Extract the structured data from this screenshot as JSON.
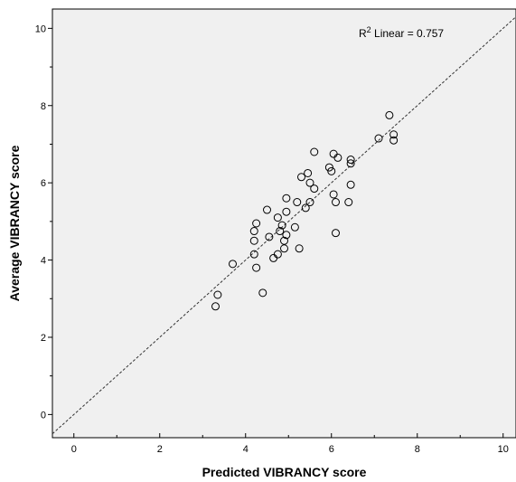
{
  "chart_data": {
    "type": "scatter",
    "title": "",
    "xlabel": "Predicted VIBRANCY score",
    "ylabel": "Average VIBRANCY score",
    "xlim": [
      -0.5,
      10.3
    ],
    "ylim": [
      -0.6,
      10.5
    ],
    "x_ticks": [
      0,
      2,
      4,
      6,
      8,
      10
    ],
    "y_ticks": [
      0,
      2,
      4,
      6,
      8,
      10
    ],
    "annotation": {
      "r_label": "R",
      "superscript": "2",
      "text": " Linear = 0.757"
    },
    "reference_line": {
      "type": "identity",
      "style": "dashed"
    },
    "grid": false,
    "background": "#f0f0f0",
    "points": [
      {
        "x": 3.3,
        "y": 2.8
      },
      {
        "x": 3.35,
        "y": 3.1
      },
      {
        "x": 3.7,
        "y": 3.9
      },
      {
        "x": 4.2,
        "y": 4.15
      },
      {
        "x": 4.2,
        "y": 4.5
      },
      {
        "x": 4.2,
        "y": 4.75
      },
      {
        "x": 4.25,
        "y": 4.95
      },
      {
        "x": 4.25,
        "y": 3.8
      },
      {
        "x": 4.4,
        "y": 3.15
      },
      {
        "x": 4.5,
        "y": 5.3
      },
      {
        "x": 4.55,
        "y": 4.6
      },
      {
        "x": 4.65,
        "y": 4.05
      },
      {
        "x": 4.75,
        "y": 4.15
      },
      {
        "x": 4.75,
        "y": 5.1
      },
      {
        "x": 4.8,
        "y": 4.75
      },
      {
        "x": 4.85,
        "y": 4.9
      },
      {
        "x": 4.9,
        "y": 4.3
      },
      {
        "x": 4.9,
        "y": 4.5
      },
      {
        "x": 4.95,
        "y": 4.65
      },
      {
        "x": 4.95,
        "y": 5.25
      },
      {
        "x": 4.95,
        "y": 5.6
      },
      {
        "x": 5.15,
        "y": 4.85
      },
      {
        "x": 5.2,
        "y": 5.5
      },
      {
        "x": 5.25,
        "y": 4.3
      },
      {
        "x": 5.3,
        "y": 6.15
      },
      {
        "x": 5.4,
        "y": 5.35
      },
      {
        "x": 5.45,
        "y": 6.25
      },
      {
        "x": 5.5,
        "y": 5.5
      },
      {
        "x": 5.5,
        "y": 6.0
      },
      {
        "x": 5.6,
        "y": 5.85
      },
      {
        "x": 5.6,
        "y": 6.8
      },
      {
        "x": 5.95,
        "y": 6.4
      },
      {
        "x": 6.0,
        "y": 6.3
      },
      {
        "x": 6.05,
        "y": 5.7
      },
      {
        "x": 6.05,
        "y": 6.75
      },
      {
        "x": 6.1,
        "y": 5.5
      },
      {
        "x": 6.1,
        "y": 4.7
      },
      {
        "x": 6.15,
        "y": 6.65
      },
      {
        "x": 6.4,
        "y": 5.5
      },
      {
        "x": 6.45,
        "y": 6.5
      },
      {
        "x": 6.45,
        "y": 6.6
      },
      {
        "x": 6.45,
        "y": 5.95
      },
      {
        "x": 7.1,
        "y": 7.15
      },
      {
        "x": 7.35,
        "y": 7.75
      },
      {
        "x": 7.45,
        "y": 7.1
      },
      {
        "x": 7.45,
        "y": 7.25
      }
    ]
  }
}
